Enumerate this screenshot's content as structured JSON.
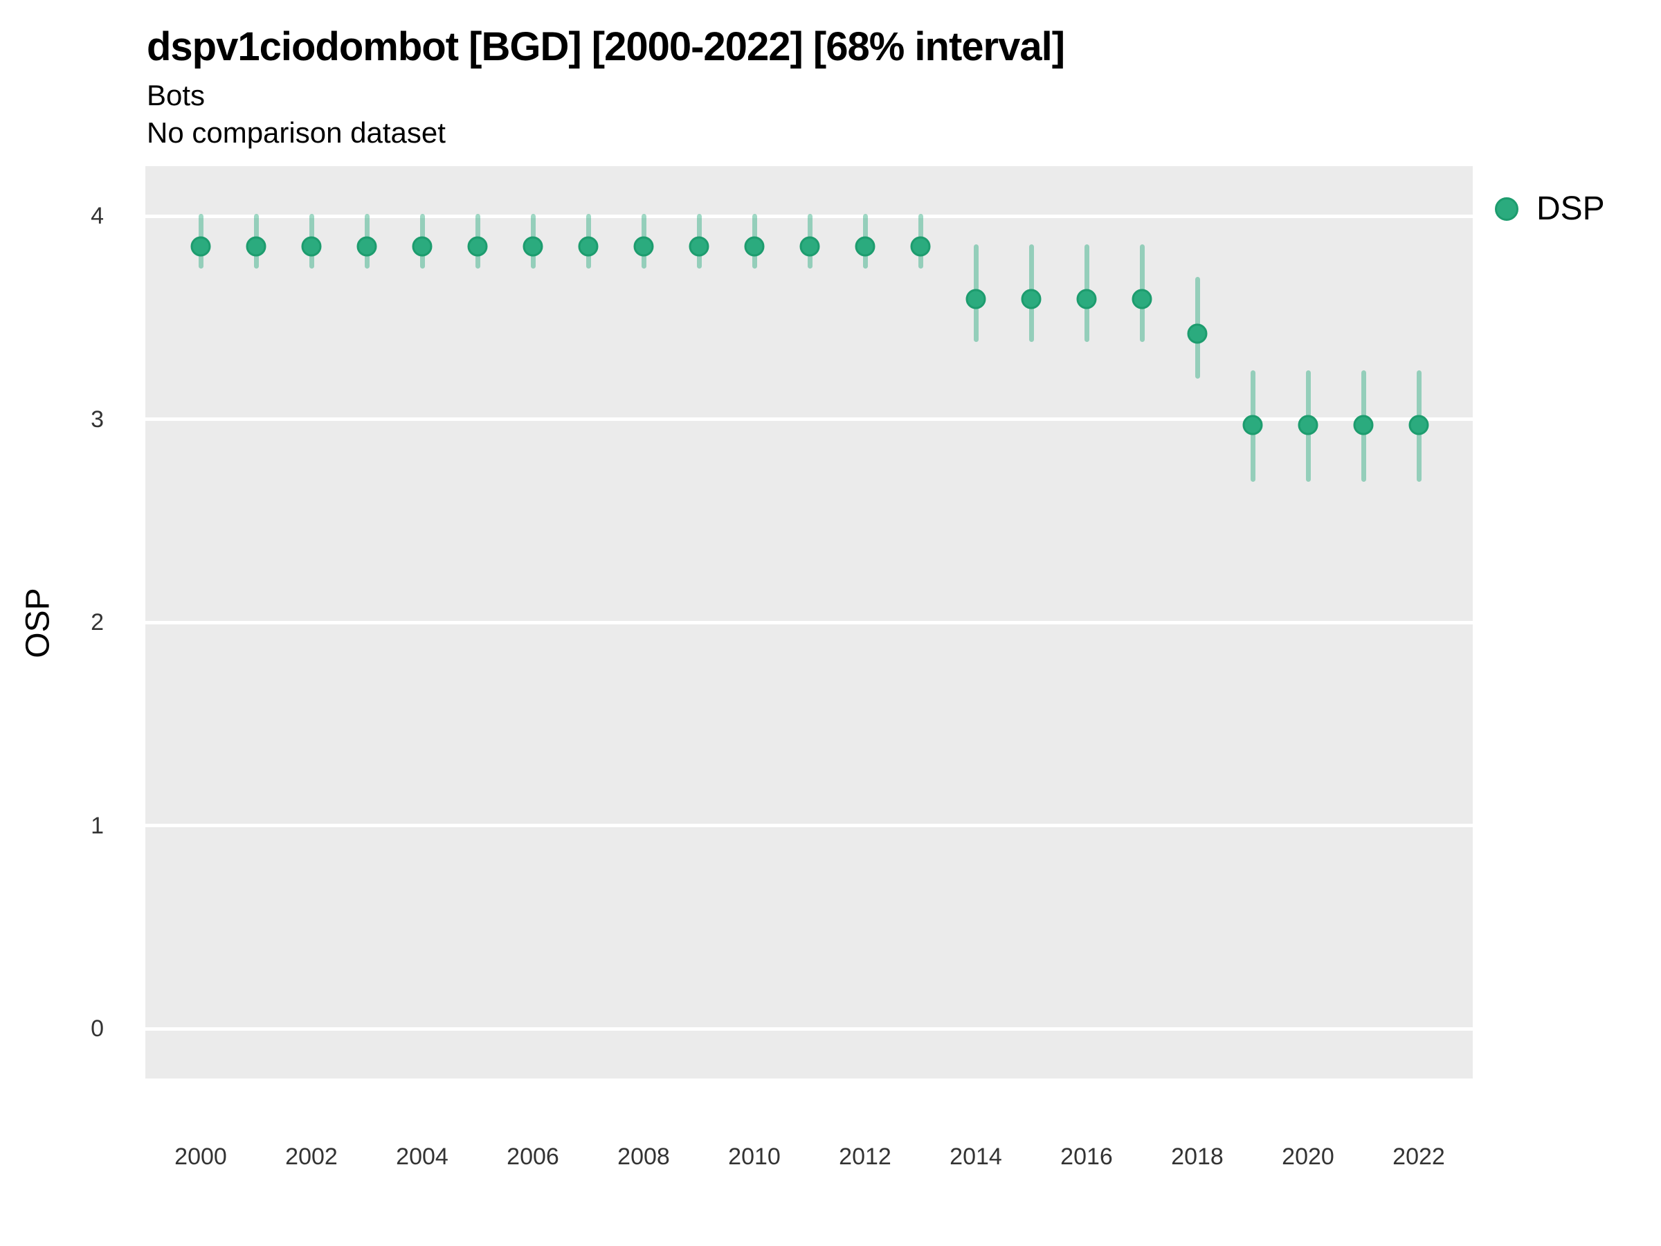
{
  "header": {
    "title": "dspv1ciodombot [BGD] [2000-2022] [68% interval]",
    "subtitle": "Bots",
    "note": "No comparison dataset"
  },
  "legend": {
    "label": "DSP"
  },
  "colors": {
    "accent_green": "#2bab7e",
    "point_fill": "#2bab7e",
    "point_stroke": "#1d9c6e",
    "interval_base": "#2bab7e",
    "interval_opacity": 0.45,
    "panel_bg": "#ebebeb",
    "gridline": "#ffffff",
    "text": "#000000",
    "tick_text": "#333333"
  },
  "chart_data": {
    "type": "scatter",
    "subtype": "pointrange",
    "title": "dspv1ciodombot [BGD] [2000-2022] [68% interval]",
    "subtitle": "Bots",
    "note": "No comparison dataset",
    "interval": "68%",
    "xlabel": "",
    "ylabel": "OSP",
    "x_ticks": [
      2000,
      2002,
      2004,
      2006,
      2008,
      2010,
      2012,
      2014,
      2016,
      2018,
      2020,
      2022
    ],
    "y_ticks": [
      0,
      1,
      2,
      3,
      4
    ],
    "xlim": [
      1999,
      2023
    ],
    "ylim": [
      -0.25,
      4.25
    ],
    "grid": "horizontal major gridlines only, white on gray panel",
    "legend_position": "right-top",
    "series": [
      {
        "name": "DSP",
        "points": [
          {
            "year": 2000,
            "value": 3.85,
            "lo": 3.74,
            "hi": 4.01
          },
          {
            "year": 2001,
            "value": 3.85,
            "lo": 3.74,
            "hi": 4.01
          },
          {
            "year": 2002,
            "value": 3.85,
            "lo": 3.74,
            "hi": 4.01
          },
          {
            "year": 2003,
            "value": 3.85,
            "lo": 3.74,
            "hi": 4.01
          },
          {
            "year": 2004,
            "value": 3.85,
            "lo": 3.74,
            "hi": 4.01
          },
          {
            "year": 2005,
            "value": 3.85,
            "lo": 3.74,
            "hi": 4.01
          },
          {
            "year": 2006,
            "value": 3.85,
            "lo": 3.74,
            "hi": 4.01
          },
          {
            "year": 2007,
            "value": 3.85,
            "lo": 3.74,
            "hi": 4.01
          },
          {
            "year": 2008,
            "value": 3.85,
            "lo": 3.74,
            "hi": 4.01
          },
          {
            "year": 2009,
            "value": 3.85,
            "lo": 3.74,
            "hi": 4.01
          },
          {
            "year": 2010,
            "value": 3.85,
            "lo": 3.74,
            "hi": 4.01
          },
          {
            "year": 2011,
            "value": 3.85,
            "lo": 3.74,
            "hi": 4.01
          },
          {
            "year": 2012,
            "value": 3.85,
            "lo": 3.74,
            "hi": 4.01
          },
          {
            "year": 2013,
            "value": 3.85,
            "lo": 3.74,
            "hi": 4.01
          },
          {
            "year": 2014,
            "value": 3.59,
            "lo": 3.38,
            "hi": 3.86
          },
          {
            "year": 2015,
            "value": 3.59,
            "lo": 3.38,
            "hi": 3.86
          },
          {
            "year": 2016,
            "value": 3.59,
            "lo": 3.38,
            "hi": 3.86
          },
          {
            "year": 2017,
            "value": 3.59,
            "lo": 3.38,
            "hi": 3.86
          },
          {
            "year": 2018,
            "value": 3.42,
            "lo": 3.2,
            "hi": 3.7
          },
          {
            "year": 2019,
            "value": 2.97,
            "lo": 2.69,
            "hi": 3.24
          },
          {
            "year": 2020,
            "value": 2.97,
            "lo": 2.69,
            "hi": 3.24
          },
          {
            "year": 2021,
            "value": 2.97,
            "lo": 2.69,
            "hi": 3.24
          },
          {
            "year": 2022,
            "value": 2.97,
            "lo": 2.69,
            "hi": 3.24
          }
        ]
      }
    ]
  }
}
